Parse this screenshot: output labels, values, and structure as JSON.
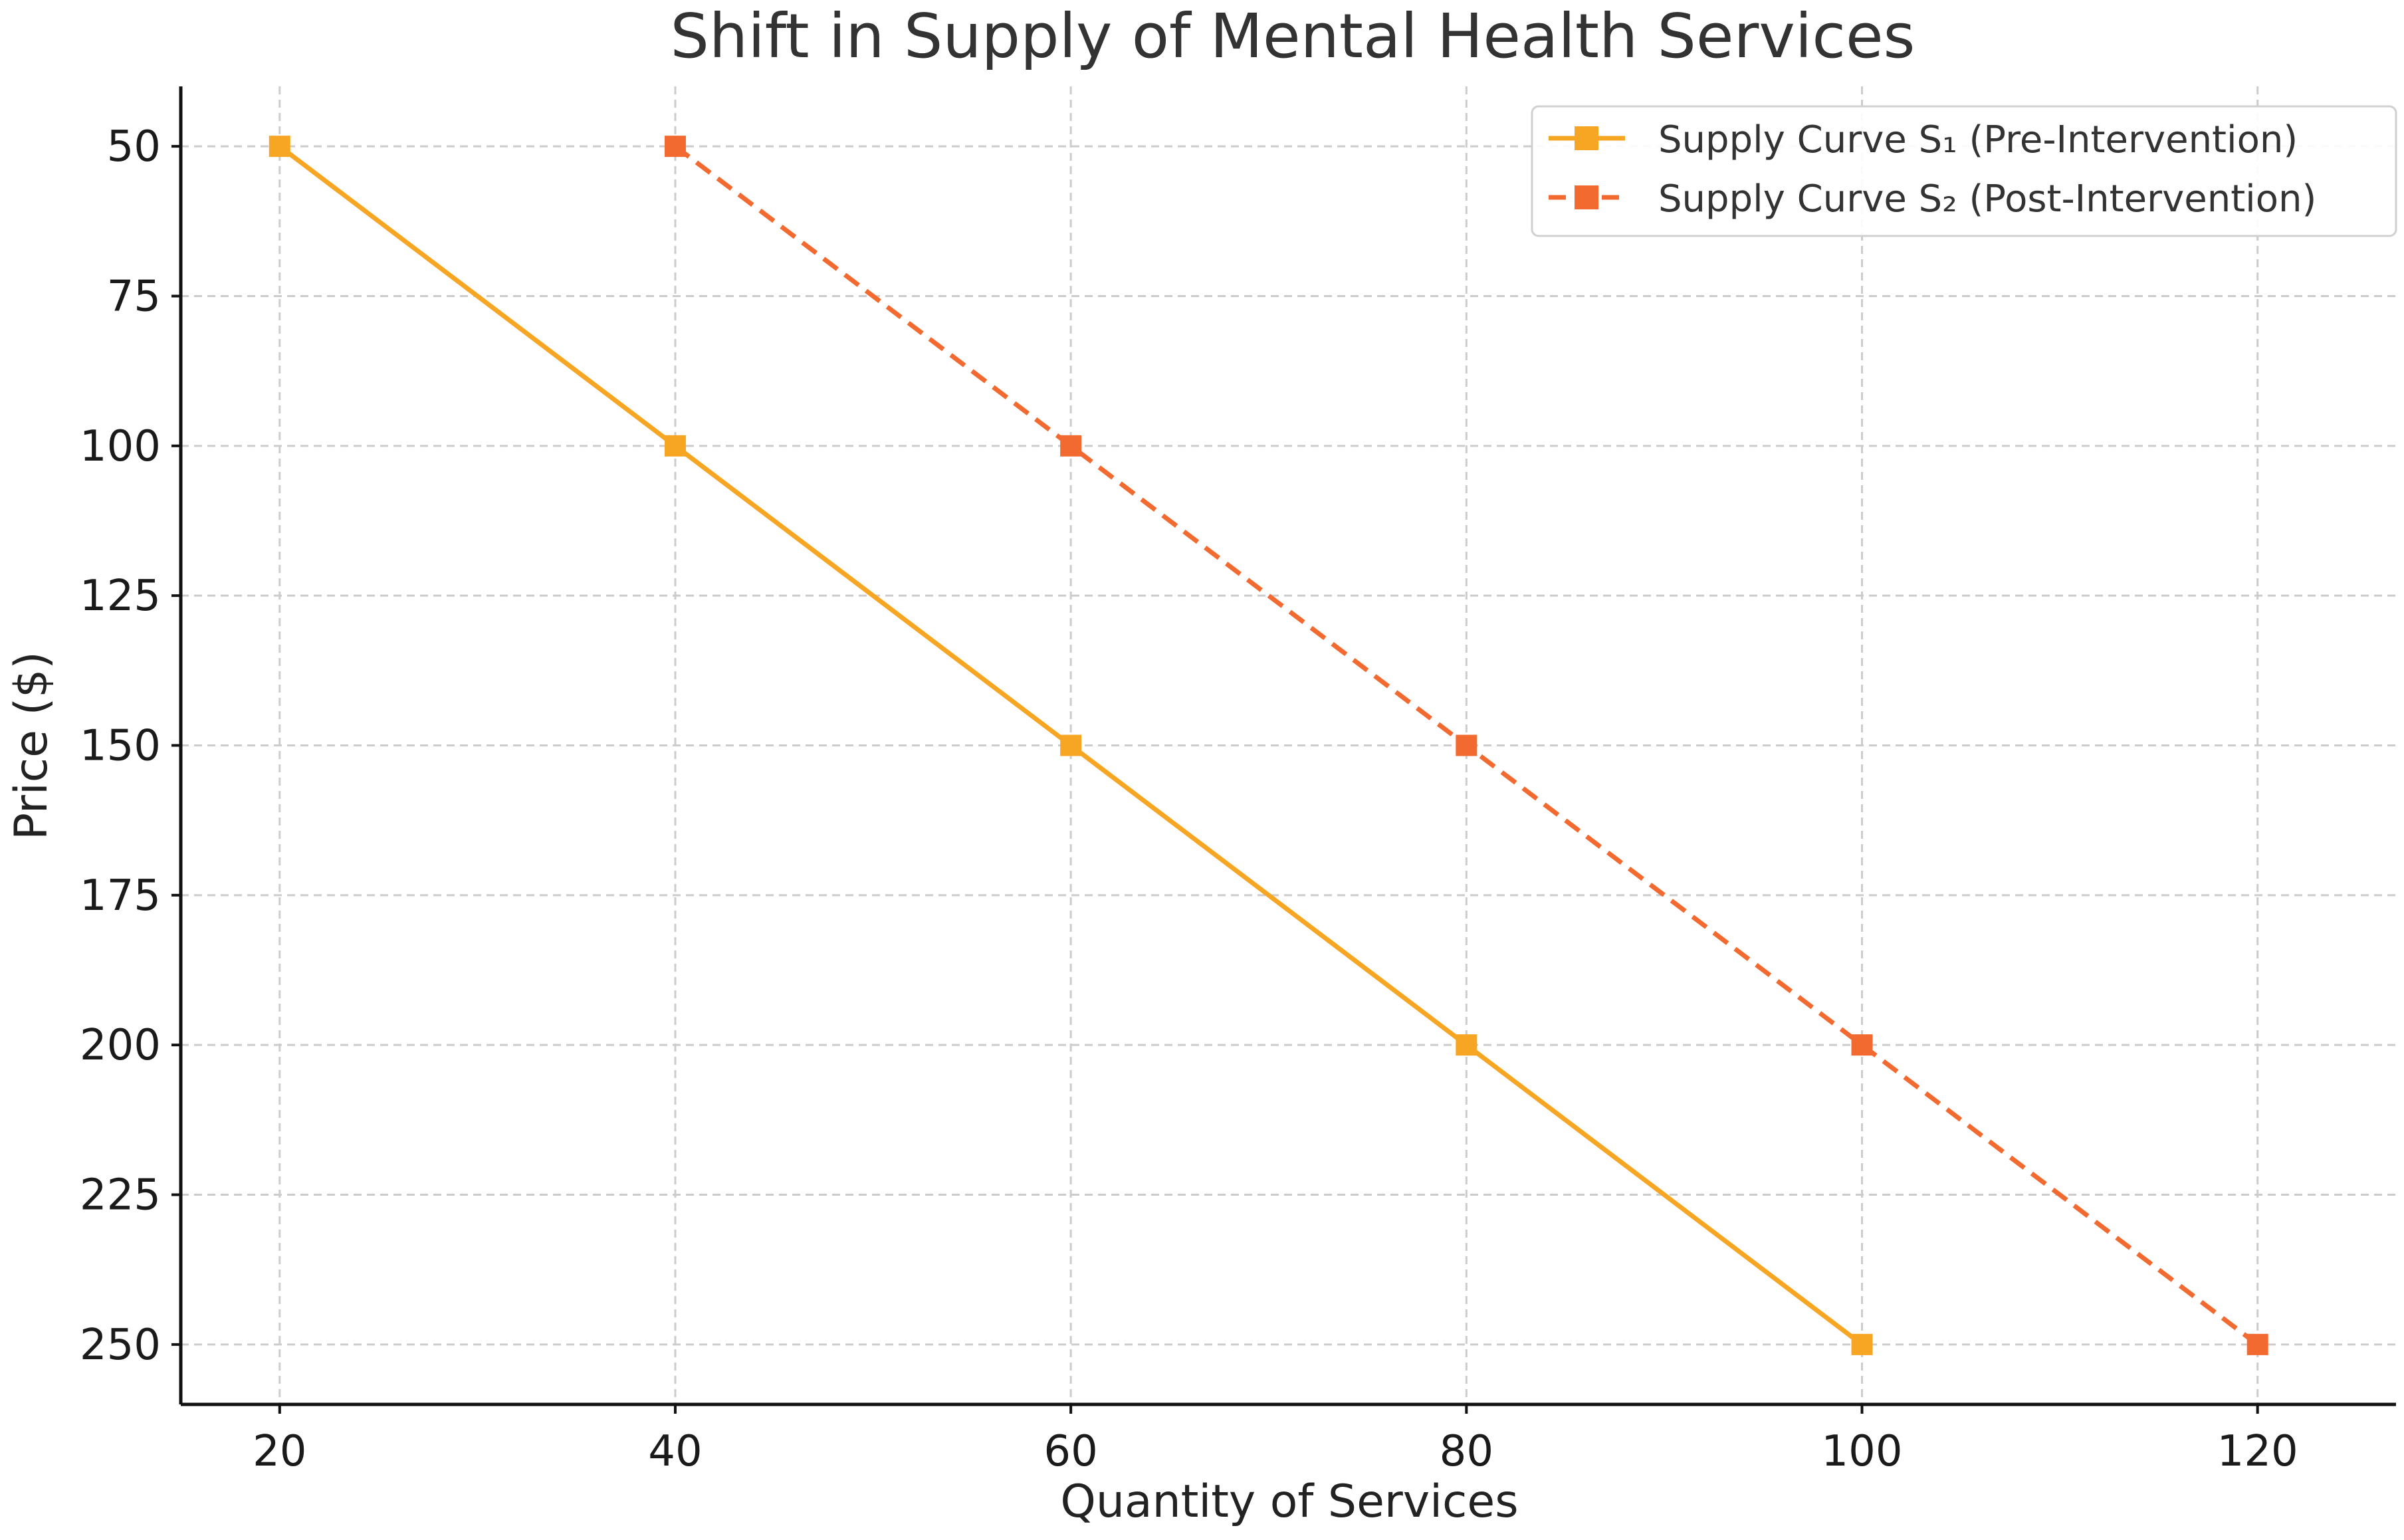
{
  "chart_data": {
    "type": "line",
    "title": "Shift in Supply of Mental Health Services",
    "xlabel": "Quantity of Services",
    "ylabel": "Price ($)",
    "xlim": [
      15,
      127
    ],
    "ylim": [
      260,
      40
    ],
    "y_inverted": true,
    "xticks": [
      20,
      40,
      60,
      80,
      100,
      120
    ],
    "yticks": [
      50,
      75,
      100,
      125,
      150,
      175,
      200,
      225,
      250
    ],
    "grid": true,
    "legend_position": "top-right",
    "series": [
      {
        "name": "Supply Curve S₁ (Pre-Intervention)",
        "x": [
          20,
          40,
          60,
          80,
          100
        ],
        "y": [
          50,
          100,
          150,
          200,
          250
        ],
        "color": "#F7A623",
        "line_style": "solid",
        "marker": "square"
      },
      {
        "name": "Supply Curve S₂ (Post-Intervention)",
        "x": [
          40,
          60,
          80,
          100,
          120
        ],
        "y": [
          50,
          100,
          150,
          200,
          250
        ],
        "color": "#F26A30",
        "line_style": "dashed",
        "marker": "square"
      }
    ]
  }
}
